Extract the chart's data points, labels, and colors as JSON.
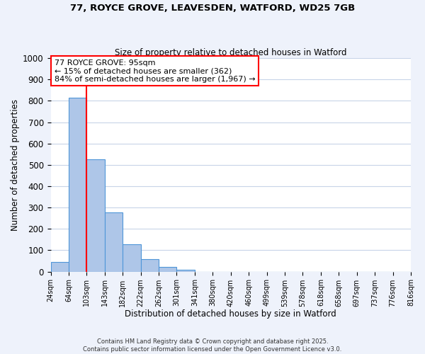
{
  "title_line1": "77, ROYCE GROVE, LEAVESDEN, WATFORD, WD25 7GB",
  "title_line2": "Size of property relative to detached houses in Watford",
  "xlabel": "Distribution of detached houses by size in Watford",
  "ylabel": "Number of detached properties",
  "bin_labels": [
    "24sqm",
    "64sqm",
    "103sqm",
    "143sqm",
    "182sqm",
    "222sqm",
    "262sqm",
    "301sqm",
    "341sqm",
    "380sqm",
    "420sqm",
    "460sqm",
    "499sqm",
    "539sqm",
    "578sqm",
    "618sqm",
    "658sqm",
    "697sqm",
    "737sqm",
    "776sqm",
    "816sqm"
  ],
  "bar_values": [
    46,
    815,
    527,
    278,
    127,
    57,
    22,
    10,
    0,
    0,
    0,
    0,
    0,
    0,
    0,
    0,
    0,
    0,
    0,
    0
  ],
  "bar_color": "#aec6e8",
  "bar_edge_color": "#4f96d8",
  "ylim": [
    0,
    1000
  ],
  "yticks": [
    0,
    100,
    200,
    300,
    400,
    500,
    600,
    700,
    800,
    900,
    1000
  ],
  "red_line_label": "77 ROYCE GROVE: 95sqm",
  "annotation_line2": "← 15% of detached houses are smaller (362)",
  "annotation_line3": "84% of semi-detached houses are larger (1,967) →",
  "footnote_line1": "Contains HM Land Registry data © Crown copyright and database right 2025.",
  "footnote_line2": "Contains public sector information licensed under the Open Government Licence v3.0.",
  "bg_color": "#eef2fb",
  "plot_bg_color": "#ffffff",
  "grid_color": "#c8d4e8",
  "red_line_x": 2
}
